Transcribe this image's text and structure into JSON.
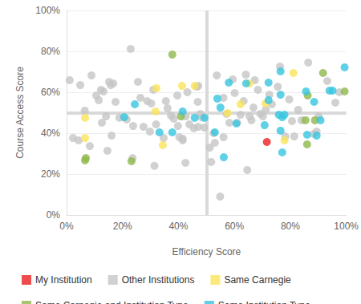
{
  "chart_data": {
    "type": "scatter",
    "x_label": "Efficiency Score",
    "y_label": "Course Access Score",
    "xlim": [
      0,
      100
    ],
    "ylim": [
      0,
      100
    ],
    "xticks": [
      {
        "value": 0,
        "label": "0%"
      },
      {
        "value": 20,
        "label": "20%"
      },
      {
        "value": 40,
        "label": "40%"
      },
      {
        "value": 60,
        "label": "60%"
      },
      {
        "value": 80,
        "label": "80%"
      },
      {
        "value": 100,
        "label": "100%"
      }
    ],
    "yticks": [
      {
        "value": 0,
        "label": "0%"
      },
      {
        "value": 20,
        "label": "20%"
      },
      {
        "value": 40,
        "label": "40%"
      },
      {
        "value": 60,
        "label": "60%"
      },
      {
        "value": 80,
        "label": "80%"
      },
      {
        "value": 100,
        "label": "100%"
      }
    ],
    "grid": true,
    "legend": "bottom",
    "marker": "circle",
    "reference_lines": {
      "x": 50,
      "y": 50
    },
    "series": [
      {
        "name": "My Institution",
        "color": "#e8211f",
        "x": [
          71.6
        ],
        "values": [
          35.7
        ]
      },
      {
        "name": "Other Institutions",
        "color": "#c6c6c6",
        "x": [
          1.1,
          4.9,
          8.9,
          2.3,
          4.3,
          6.5,
          8.3,
          10.6,
          11.5,
          12.6,
          13.2,
          12.3,
          14.1,
          15.2,
          15.8,
          16.7,
          17.5,
          14.6,
          16.1,
          18.9,
          21.5,
          22.9,
          23.6,
          23.8,
          25.5,
          26.4,
          27.5,
          28.8,
          29.8,
          30.3,
          31.4,
          31.0,
          32.0,
          34.7,
          35.5,
          36.1,
          37.3,
          38.3,
          39.6,
          39.8,
          40.3,
          41.5,
          41.5,
          42.5,
          42.6,
          43.2,
          43.9,
          45.5,
          46.6,
          46.9,
          47.1,
          47.8,
          47.0,
          48.3,
          49.2,
          51.2,
          51.7,
          52.6,
          53.0,
          53.7,
          54.9,
          56.1,
          56.1,
          57.2,
          58.2,
          59.4,
          60.1,
          61.0,
          62.2,
          63.3,
          64.1,
          64.6,
          65.4,
          66.1,
          66.8,
          67.3,
          68.4,
          69.3,
          70.2,
          71.2,
          72.5,
          73.4,
          75.5,
          76.3,
          78.2,
          79.6,
          80.6,
          81.4,
          82.8,
          84.0,
          86.4,
          88.3,
          89.4,
          90.1,
          93.2,
          96.1,
          97.5
        ],
        "values": [
          65.9,
          63.5,
          68.2,
          37.6,
          36.5,
          51.0,
          33.7,
          58.4,
          56.1,
          45.1,
          60.4,
          61.2,
          48.2,
          65.1,
          63.5,
          64.3,
          55.3,
          31.4,
          38.8,
          47.5,
          46.7,
          81.2,
          27.8,
          43.5,
          65.1,
          57.3,
          43.1,
          55.7,
          40.8,
          54.5,
          24.0,
          61.2,
          44.3,
          37.6,
          55.7,
          52.2,
          48.6,
          47.1,
          58.4,
          43.5,
          38.0,
          37.3,
          36.5,
          25.5,
          48.2,
          60.0,
          44.3,
          42.4,
          62.7,
          55.3,
          63.1,
          49.4,
          43.1,
          47.8,
          42.7,
          32.9,
          25.9,
          40.0,
          35.3,
          68.2,
          9.0,
          38.0,
          57.3,
          49.4,
          45.1,
          66.3,
          59.6,
          45.1,
          49.0,
          55.7,
          68.6,
          22.0,
          48.2,
          46.3,
          52.5,
          65.9,
          61.2,
          49.4,
          48.2,
          51.4,
          58.8,
          54.1,
          62.7,
          72.5,
          38.4,
          56.5,
          45.9,
          38.4,
          51.4,
          46.3,
          74.5,
          39.6,
          40.8,
          48.2,
          65.5,
          54.9,
          60.0
        ]
      },
      {
        "name": "Same Carnegie",
        "color": "#fbe35a",
        "x": [
          6.6,
          6.6,
          32.1,
          31.8,
          34.4,
          41.3,
          45.8,
          62.2,
          57.6,
          65.3,
          71.1,
          81.1,
          77.9
        ],
        "values": [
          47.5,
          37.6,
          62.0,
          50.6,
          34.1,
          63.1,
          63.1,
          54.1,
          49.8,
          64.3,
          54.5,
          69.4,
          36.5
        ]
      },
      {
        "name": "Same Carnegie and Institution Type",
        "color": "#8db84a",
        "x": [
          6.9,
          6.6,
          23.2,
          37.8,
          40.9,
          86.2,
          85.4,
          86.0,
          88.8,
          91.7,
          99.4
        ],
        "values": [
          27.8,
          26.7,
          26.3,
          78.4,
          48.2,
          58.4,
          46.3,
          34.5,
          46.3,
          69.4,
          60.4
        ]
      },
      {
        "name": "Same Institution Type",
        "color": "#36c5e0",
        "x": [
          24.4,
          20.6,
          33.2,
          37.8,
          41.5,
          45.8,
          49.3,
          53.9,
          55.0,
          53.0,
          56.2,
          58.0,
          60.7,
          64.2,
          70.8,
          72.2,
          72.2,
          76.5,
          76.5,
          75.9,
          77.1,
          77.9,
          76.5,
          77.1,
          85.6,
          88.5,
          86.0,
          89.4,
          90.8,
          94.0,
          95.1,
          99.4
        ],
        "values": [
          54.1,
          47.8,
          40.4,
          40.4,
          50.6,
          47.5,
          47.5,
          56.9,
          52.5,
          40.4,
          28.2,
          64.7,
          44.7,
          64.3,
          43.9,
          64.7,
          56.1,
          70.2,
          58.8,
          49.0,
          47.8,
          49.0,
          41.2,
          30.6,
          60.4,
          55.3,
          39.2,
          38.8,
          46.3,
          60.8,
          60.8,
          72.2
        ]
      }
    ]
  }
}
